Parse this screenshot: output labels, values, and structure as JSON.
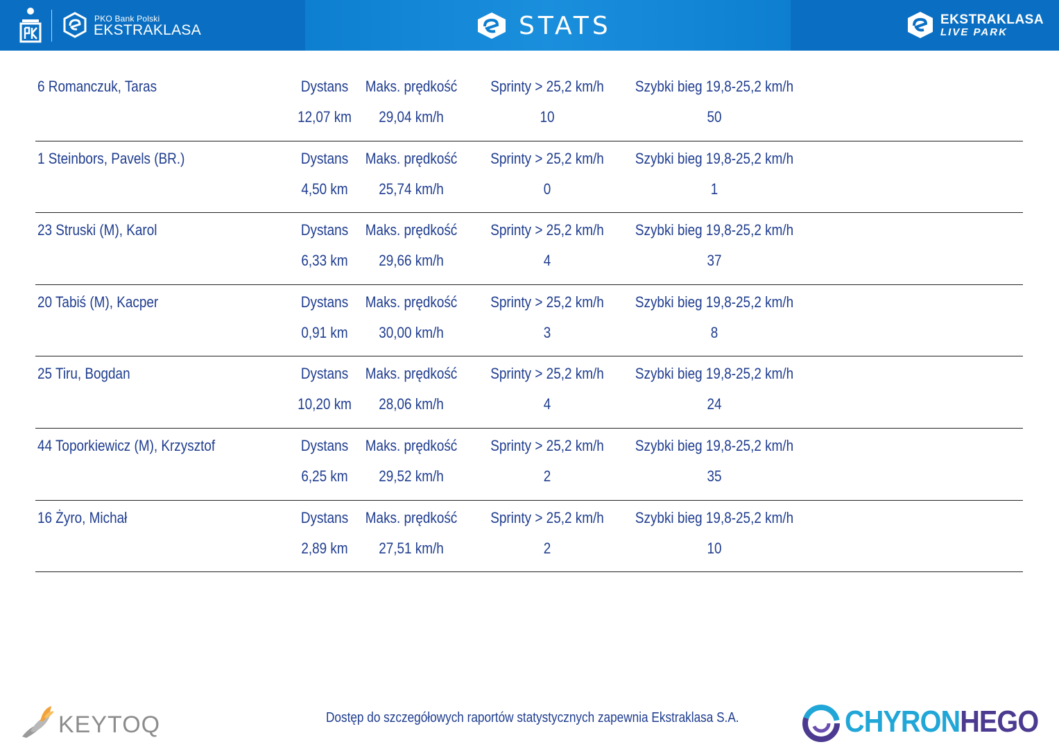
{
  "header": {
    "pko_small": "PKO Bank Polski",
    "ekstraklasa": "EKSTRAKLASA",
    "title": "STATS",
    "live_park_top": "EKSTRAKLASA",
    "live_park_bottom": "LIVE PARK"
  },
  "players": [
    {
      "name": "6  Romanczuk, Taras",
      "dist_label": "Dystans",
      "speed_label": "Maks. prędkość",
      "sprint_label": "Sprinty > 25,2 km/h",
      "fast_label": "Szybki bieg 19,8-25,2 km/h",
      "distance": "12,07 km",
      "max_speed": "29,04 km/h",
      "sprints": "10",
      "fast_runs": "50"
    },
    {
      "name": "1  Steinbors, Pavels (BR.)",
      "dist_label": "Dystans",
      "speed_label": "Maks. prędkość",
      "sprint_label": "Sprinty > 25,2 km/h",
      "fast_label": "Szybki bieg 19,8-25,2 km/h",
      "distance": "4,50 km",
      "max_speed": "25,74 km/h",
      "sprints": "0",
      "fast_runs": "1"
    },
    {
      "name": "23  Struski (M), Karol",
      "dist_label": "Dystans",
      "speed_label": "Maks. prędkość",
      "sprint_label": "Sprinty > 25,2 km/h",
      "fast_label": "Szybki bieg 19,8-25,2 km/h",
      "distance": "6,33 km",
      "max_speed": "29,66 km/h",
      "sprints": "4",
      "fast_runs": "37"
    },
    {
      "name": "20  Tabiś (M), Kacper",
      "dist_label": "Dystans",
      "speed_label": "Maks. prędkość",
      "sprint_label": "Sprinty > 25,2 km/h",
      "fast_label": "Szybki bieg 19,8-25,2 km/h",
      "distance": "0,91 km",
      "max_speed": "30,00 km/h",
      "sprints": "3",
      "fast_runs": "8"
    },
    {
      "name": "25  Tiru, Bogdan",
      "dist_label": "Dystans",
      "speed_label": "Maks. prędkość",
      "sprint_label": "Sprinty > 25,2 km/h",
      "fast_label": "Szybki bieg 19,8-25,2 km/h",
      "distance": "10,20 km",
      "max_speed": "28,06 km/h",
      "sprints": "4",
      "fast_runs": "24"
    },
    {
      "name": "44  Toporkiewicz (M), Krzysztof",
      "dist_label": "Dystans",
      "speed_label": "Maks. prędkość",
      "sprint_label": "Sprinty > 25,2 km/h",
      "fast_label": "Szybki bieg 19,8-25,2 km/h",
      "distance": "6,25 km",
      "max_speed": "29,52 km/h",
      "sprints": "2",
      "fast_runs": "35"
    },
    {
      "name": "16  Żyro, Michał",
      "dist_label": "Dystans",
      "speed_label": "Maks. prędkość",
      "sprint_label": "Sprinty > 25,2 km/h",
      "fast_label": "Szybki bieg 19,8-25,2 km/h",
      "distance": "2,89 km",
      "max_speed": "27,51 km/h",
      "sprints": "2",
      "fast_runs": "10"
    }
  ],
  "footer": {
    "keytoq": "KEYTOQ",
    "note": "Dostęp do szczegółowych raportów statystycznych zapewnia Ekstraklasa S.A.",
    "chyron_a": "CHYRON",
    "chyron_b": "HEGO"
  },
  "colors": {
    "header_blue": "#0a6fc2",
    "text_blue": "#1f3d8f",
    "chyron_cyan": "#21a6d8",
    "chyron_purple": "#4b3a8f"
  }
}
